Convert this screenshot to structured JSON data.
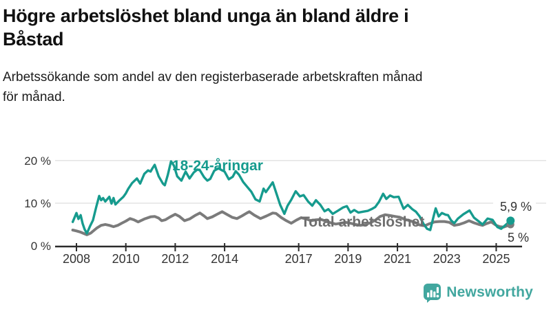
{
  "header": {
    "title_line1": "Högre arbetslöshet bland unga än bland äldre i",
    "title_line2": "Båstad",
    "subtitle_line1": "Arbetssökande som andel av den registerbaserade arbetskraften månad",
    "subtitle_line2": "för månad."
  },
  "chart_data": {
    "type": "line",
    "title": "Högre arbetslöshet bland unga än bland äldre i Båstad",
    "subtitle": "Arbetssökande som andel av den registerbaserade arbetskraften månad för månad.",
    "xlabel": "",
    "ylabel": "",
    "grid": "horizontal",
    "legend": "inline-labels",
    "x_axis": {
      "range": [
        2007.8,
        2025.9
      ],
      "ticks": [
        2008,
        2010,
        2012,
        2014,
        2017,
        2019,
        2021,
        2023,
        2025
      ],
      "labels": [
        "2008",
        "2010",
        "2012",
        "2014",
        "2017",
        "2019",
        "2021",
        "2023",
        "2025"
      ]
    },
    "y_axis": {
      "range": [
        0,
        22
      ],
      "ticks": [
        0,
        10,
        20
      ],
      "labels": [
        "0 %",
        "10 %",
        "20 %"
      ]
    },
    "series": [
      {
        "name": "Total arbetslöshet",
        "label": "Total arbetslöshet",
        "color": "#7b7b7b",
        "label_color": "#6e6e6e",
        "end_label": "5 %",
        "end_value": 5.0,
        "points": [
          [
            2007.85,
            3.7
          ],
          [
            2008.0,
            3.5
          ],
          [
            2008.17,
            3.2
          ],
          [
            2008.42,
            2.6
          ],
          [
            2008.58,
            3.0
          ],
          [
            2008.83,
            4.2
          ],
          [
            2009.0,
            4.8
          ],
          [
            2009.17,
            5.0
          ],
          [
            2009.33,
            4.8
          ],
          [
            2009.5,
            4.5
          ],
          [
            2009.67,
            4.8
          ],
          [
            2009.83,
            5.3
          ],
          [
            2010.0,
            5.8
          ],
          [
            2010.17,
            6.4
          ],
          [
            2010.33,
            6.1
          ],
          [
            2010.5,
            5.6
          ],
          [
            2010.75,
            6.3
          ],
          [
            2011.0,
            6.8
          ],
          [
            2011.17,
            6.9
          ],
          [
            2011.33,
            6.5
          ],
          [
            2011.45,
            5.9
          ],
          [
            2011.6,
            6.1
          ],
          [
            2011.8,
            6.8
          ],
          [
            2012.0,
            7.4
          ],
          [
            2012.17,
            6.9
          ],
          [
            2012.38,
            5.9
          ],
          [
            2012.58,
            6.3
          ],
          [
            2012.8,
            7.1
          ],
          [
            2013.0,
            7.7
          ],
          [
            2013.17,
            7.0
          ],
          [
            2013.3,
            6.4
          ],
          [
            2013.5,
            6.8
          ],
          [
            2013.7,
            7.4
          ],
          [
            2013.9,
            8.0
          ],
          [
            2014.08,
            7.4
          ],
          [
            2014.3,
            6.7
          ],
          [
            2014.5,
            6.4
          ],
          [
            2014.7,
            7.0
          ],
          [
            2014.9,
            7.7
          ],
          [
            2015.0,
            8.0
          ],
          [
            2015.2,
            7.2
          ],
          [
            2015.45,
            6.4
          ],
          [
            2015.7,
            7.0
          ],
          [
            2015.95,
            7.7
          ],
          [
            2016.08,
            7.6
          ],
          [
            2016.3,
            6.6
          ],
          [
            2016.5,
            5.9
          ],
          [
            2016.7,
            5.3
          ],
          [
            2016.9,
            6.0
          ],
          [
            2017.1,
            6.6
          ],
          [
            2017.3,
            6.3
          ],
          [
            2017.5,
            5.9
          ],
          [
            2017.7,
            6.1
          ],
          [
            2017.9,
            6.2
          ],
          [
            2018.1,
            5.8
          ],
          [
            2018.3,
            5.4
          ],
          [
            2018.5,
            5.1
          ],
          [
            2018.7,
            5.3
          ],
          [
            2018.9,
            5.5
          ],
          [
            2019.1,
            5.3
          ],
          [
            2019.3,
            5.0
          ],
          [
            2019.5,
            4.8
          ],
          [
            2019.7,
            5.0
          ],
          [
            2019.9,
            5.4
          ],
          [
            2020.1,
            6.0
          ],
          [
            2020.3,
            6.9
          ],
          [
            2020.5,
            7.3
          ],
          [
            2020.7,
            7.1
          ],
          [
            2020.9,
            6.9
          ],
          [
            2021.1,
            6.7
          ],
          [
            2021.3,
            6.2
          ],
          [
            2021.5,
            5.9
          ],
          [
            2021.7,
            5.5
          ],
          [
            2021.9,
            4.9
          ],
          [
            2022.1,
            4.7
          ],
          [
            2022.3,
            5.2
          ],
          [
            2022.5,
            5.6
          ],
          [
            2022.7,
            5.7
          ],
          [
            2022.9,
            5.7
          ],
          [
            2023.1,
            5.5
          ],
          [
            2023.3,
            4.8
          ],
          [
            2023.5,
            5.0
          ],
          [
            2023.7,
            5.4
          ],
          [
            2023.9,
            5.9
          ],
          [
            2024.1,
            5.4
          ],
          [
            2024.3,
            5.0
          ],
          [
            2024.45,
            4.8
          ],
          [
            2024.6,
            5.2
          ],
          [
            2024.8,
            5.6
          ],
          [
            2025.0,
            4.8
          ],
          [
            2025.15,
            4.5
          ],
          [
            2025.3,
            4.4
          ],
          [
            2025.45,
            4.7
          ],
          [
            2025.58,
            5.0
          ]
        ]
      },
      {
        "name": "18-24-åringar",
        "label": "18-24-åringar",
        "color": "#169b8e",
        "label_color": "#169b8e",
        "end_label": "5,9 %",
        "end_value": 5.9,
        "points": [
          [
            2007.85,
            5.6
          ],
          [
            2008.0,
            7.7
          ],
          [
            2008.08,
            6.3
          ],
          [
            2008.17,
            7.2
          ],
          [
            2008.25,
            5.2
          ],
          [
            2008.33,
            3.9
          ],
          [
            2008.42,
            2.9
          ],
          [
            2008.55,
            4.6
          ],
          [
            2008.67,
            6.0
          ],
          [
            2008.8,
            9.1
          ],
          [
            2008.92,
            11.7
          ],
          [
            2009.0,
            10.7
          ],
          [
            2009.08,
            11.2
          ],
          [
            2009.17,
            10.4
          ],
          [
            2009.33,
            11.5
          ],
          [
            2009.42,
            9.9
          ],
          [
            2009.5,
            11.2
          ],
          [
            2009.58,
            9.7
          ],
          [
            2009.75,
            10.7
          ],
          [
            2009.9,
            11.5
          ],
          [
            2010.0,
            12.3
          ],
          [
            2010.1,
            13.4
          ],
          [
            2010.25,
            14.7
          ],
          [
            2010.45,
            15.8
          ],
          [
            2010.58,
            14.6
          ],
          [
            2010.75,
            16.9
          ],
          [
            2010.9,
            17.7
          ],
          [
            2011.0,
            17.4
          ],
          [
            2011.08,
            18.2
          ],
          [
            2011.17,
            19.0
          ],
          [
            2011.33,
            16.3
          ],
          [
            2011.5,
            14.6
          ],
          [
            2011.58,
            14.2
          ],
          [
            2011.7,
            16.6
          ],
          [
            2011.83,
            19.8
          ],
          [
            2011.95,
            18.8
          ],
          [
            2012.08,
            16.3
          ],
          [
            2012.25,
            15.3
          ],
          [
            2012.42,
            17.4
          ],
          [
            2012.58,
            15.8
          ],
          [
            2012.75,
            17.2
          ],
          [
            2012.9,
            17.9
          ],
          [
            2013.0,
            17.7
          ],
          [
            2013.17,
            16.1
          ],
          [
            2013.3,
            15.3
          ],
          [
            2013.42,
            15.7
          ],
          [
            2013.58,
            17.6
          ],
          [
            2013.75,
            18.2
          ],
          [
            2013.9,
            17.7
          ],
          [
            2014.0,
            17.4
          ],
          [
            2014.17,
            15.6
          ],
          [
            2014.33,
            16.2
          ],
          [
            2014.45,
            17.5
          ],
          [
            2014.58,
            16.7
          ],
          [
            2014.75,
            15.0
          ],
          [
            2014.92,
            13.8
          ],
          [
            2015.08,
            12.7
          ],
          [
            2015.25,
            10.9
          ],
          [
            2015.42,
            10.4
          ],
          [
            2015.58,
            13.4
          ],
          [
            2015.67,
            12.6
          ],
          [
            2015.83,
            13.9
          ],
          [
            2015.95,
            14.9
          ],
          [
            2016.08,
            12.6
          ],
          [
            2016.25,
            9.6
          ],
          [
            2016.42,
            7.5
          ],
          [
            2016.55,
            9.4
          ],
          [
            2016.7,
            10.8
          ],
          [
            2016.88,
            12.8
          ],
          [
            2017.05,
            11.6
          ],
          [
            2017.2,
            11.9
          ],
          [
            2017.38,
            10.4
          ],
          [
            2017.55,
            9.4
          ],
          [
            2017.7,
            10.7
          ],
          [
            2017.88,
            9.6
          ],
          [
            2018.05,
            8.1
          ],
          [
            2018.2,
            8.6
          ],
          [
            2018.38,
            7.5
          ],
          [
            2018.58,
            8.2
          ],
          [
            2018.8,
            9.0
          ],
          [
            2018.95,
            9.3
          ],
          [
            2019.1,
            7.8
          ],
          [
            2019.25,
            8.4
          ],
          [
            2019.42,
            7.8
          ],
          [
            2019.6,
            8.0
          ],
          [
            2019.8,
            8.2
          ],
          [
            2019.95,
            8.6
          ],
          [
            2020.1,
            9.1
          ],
          [
            2020.25,
            10.3
          ],
          [
            2020.42,
            12.2
          ],
          [
            2020.55,
            11.0
          ],
          [
            2020.7,
            11.8
          ],
          [
            2020.85,
            11.4
          ],
          [
            2021.05,
            11.5
          ],
          [
            2021.25,
            8.7
          ],
          [
            2021.42,
            9.6
          ],
          [
            2021.6,
            8.6
          ],
          [
            2021.75,
            8.0
          ],
          [
            2021.9,
            6.9
          ],
          [
            2022.05,
            5.2
          ],
          [
            2022.2,
            4.0
          ],
          [
            2022.33,
            3.7
          ],
          [
            2022.47,
            7.0
          ],
          [
            2022.55,
            8.8
          ],
          [
            2022.67,
            6.9
          ],
          [
            2022.8,
            7.7
          ],
          [
            2022.95,
            7.3
          ],
          [
            2023.05,
            7.2
          ],
          [
            2023.17,
            6.0
          ],
          [
            2023.3,
            5.3
          ],
          [
            2023.45,
            6.4
          ],
          [
            2023.67,
            7.4
          ],
          [
            2023.92,
            8.3
          ],
          [
            2024.1,
            6.6
          ],
          [
            2024.3,
            5.7
          ],
          [
            2024.45,
            5.0
          ],
          [
            2024.65,
            6.4
          ],
          [
            2024.85,
            6.1
          ],
          [
            2025.05,
            4.4
          ],
          [
            2025.2,
            4.0
          ],
          [
            2025.38,
            4.9
          ],
          [
            2025.58,
            5.9
          ]
        ]
      }
    ]
  },
  "footer": {
    "brand": "Newsworthy",
    "logo_color": "#42a79f"
  },
  "colors": {
    "youth_line": "#169b8e",
    "total_line": "#7b7b7b",
    "axis": "#2b2b2b",
    "gridline": "#e3e3e3",
    "value_label": "#333333"
  }
}
